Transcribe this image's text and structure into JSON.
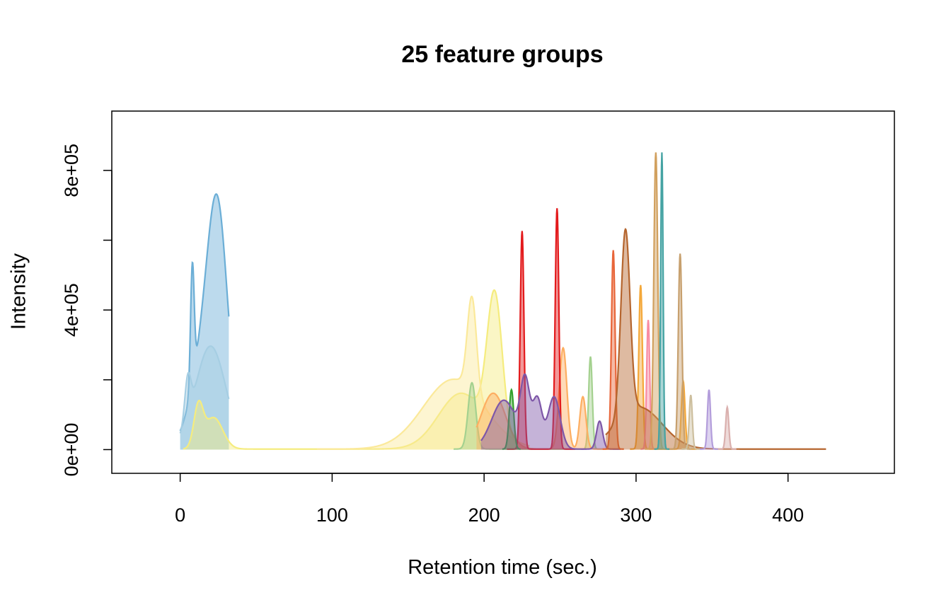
{
  "chart_data": {
    "type": "area",
    "title": "25 feature groups",
    "xlabel": "Retention time (sec.)",
    "ylabel": "Intensity",
    "xlim": [
      -45,
      470
    ],
    "ylim": [
      -68000,
      970000
    ],
    "xticks": [
      0,
      100,
      200,
      300,
      400
    ],
    "xtick_labels": [
      "0",
      "100",
      "200",
      "300",
      "400"
    ],
    "yticks": [
      0,
      200000,
      400000,
      600000,
      800000
    ],
    "ytick_labels": [
      "0e+00",
      "",
      "4e+05",
      "",
      "8e+05"
    ],
    "grid": false,
    "legend": "none",
    "series": [
      {
        "color": "#6BAED6",
        "peaks": [
          [
            8,
            340000,
            1.2
          ],
          [
            20,
            385000,
            10
          ],
          [
            25,
            380000,
            6
          ]
        ],
        "range": [
          0,
          32
        ]
      },
      {
        "color": "#A6CEE3",
        "peaks": [
          [
            20,
            295000,
            10
          ],
          [
            5,
            120000,
            2
          ]
        ],
        "range": [
          0,
          32
        ]
      },
      {
        "color": "#F5EC7E",
        "peaks": [
          [
            12,
            115000,
            3
          ],
          [
            22,
            90000,
            6
          ],
          [
            185,
            160000,
            15
          ],
          [
            207,
            400000,
            5
          ]
        ],
        "range": [
          2,
          228
        ]
      },
      {
        "color": "#FBE99A",
        "peaks": [
          [
            180,
            200000,
            20
          ],
          [
            192,
            270000,
            3
          ]
        ],
        "range": [
          90,
          230
        ]
      },
      {
        "color": "#A4D18F",
        "peaks": [
          [
            192,
            190000,
            2.5
          ],
          [
            270,
            265000,
            1.2
          ]
        ],
        "range": [
          180,
          280
        ]
      },
      {
        "color": "#FDAE61",
        "peaks": [
          [
            206,
            160000,
            8
          ],
          [
            252,
            290000,
            2.5
          ],
          [
            265,
            150000,
            2
          ]
        ],
        "range": [
          195,
          290
        ]
      },
      {
        "color": "#E31A1C",
        "peaks": [
          [
            225,
            625000,
            1.2
          ],
          [
            248,
            690000,
            1.2
          ]
        ],
        "range": [
          215,
          260
        ]
      },
      {
        "color": "#33A02C",
        "peaks": [
          [
            218,
            170000,
            1.5
          ]
        ],
        "range": [
          212,
          224
        ]
      },
      {
        "color": "#7E57A8",
        "peaks": [
          [
            213,
            140000,
            8
          ],
          [
            227,
            180000,
            3
          ],
          [
            235,
            140000,
            3
          ],
          [
            246,
            150000,
            4
          ],
          [
            276,
            80000,
            2
          ]
        ],
        "range": [
          198,
          290
        ]
      },
      {
        "color": "#E8663A",
        "peaks": [
          [
            285,
            570000,
            1.2
          ]
        ],
        "range": [
          278,
          292
        ]
      },
      {
        "color": "#F4A83A",
        "peaks": [
          [
            303,
            470000,
            1.2
          ],
          [
            331,
            195000,
            1.2
          ]
        ],
        "range": [
          296,
          340
        ]
      },
      {
        "color": "#F88CA3",
        "peaks": [
          [
            308,
            370000,
            1
          ]
        ],
        "range": [
          303,
          313
        ]
      },
      {
        "color": "#B5652E",
        "peaks": [
          [
            293,
            530000,
            3
          ],
          [
            302,
            120000,
            15
          ]
        ],
        "range": [
          280,
          425
        ]
      },
      {
        "color": "#D1A05E",
        "peaks": [
          [
            313,
            850000,
            1.3
          ]
        ],
        "range": [
          306,
          320
        ]
      },
      {
        "color": "#45A3A3",
        "peaks": [
          [
            317,
            850000,
            0.8
          ]
        ],
        "range": [
          312,
          322
        ]
      },
      {
        "color": "#C7A06E",
        "peaks": [
          [
            329,
            560000,
            1.2
          ]
        ],
        "range": [
          322,
          336
        ]
      },
      {
        "color": "#CDBF9E",
        "peaks": [
          [
            336,
            155000,
            1
          ]
        ],
        "range": [
          330,
          342
        ]
      },
      {
        "color": "#B39DDB",
        "peaks": [
          [
            348,
            170000,
            1
          ]
        ],
        "range": [
          342,
          354
        ]
      },
      {
        "color": "#DAB0AE",
        "peaks": [
          [
            360,
            120000,
            1
          ]
        ],
        "range": [
          354,
          366
        ]
      }
    ]
  }
}
